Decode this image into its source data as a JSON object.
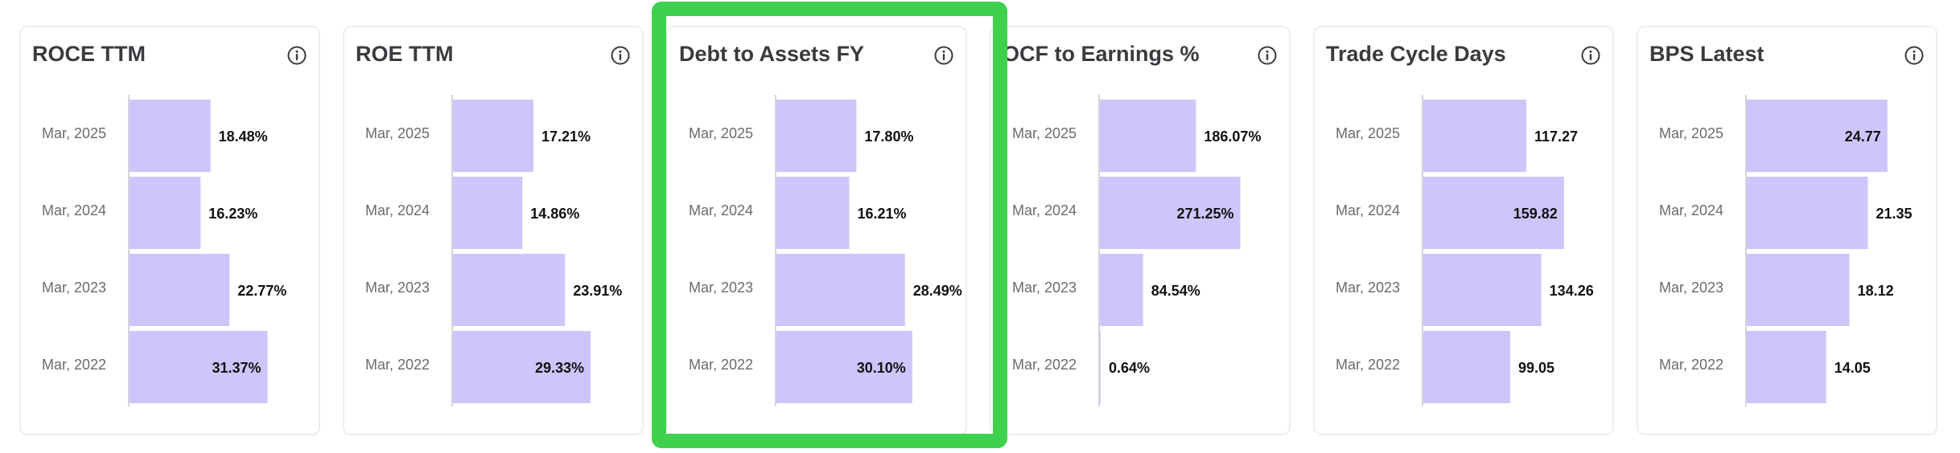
{
  "colors": {
    "bar": "#cdc6fc",
    "axis": "#d4d4da",
    "highlight": "#3fd14d"
  },
  "chart_data": [
    {
      "type": "bar",
      "title": "ROCE TTM",
      "icon": "info-icon",
      "categories": [
        "Mar, 2025",
        "Mar, 2024",
        "Mar, 2023",
        "Mar, 2022"
      ],
      "values": [
        18.48,
        16.23,
        22.77,
        31.37
      ],
      "labels": [
        "18.48%",
        "16.23%",
        "22.77%",
        "31.37%"
      ],
      "xlim": [
        0,
        40
      ]
    },
    {
      "type": "bar",
      "title": "ROE TTM",
      "icon": "info-icon",
      "categories": [
        "Mar, 2025",
        "Mar, 2024",
        "Mar, 2023",
        "Mar, 2022"
      ],
      "values": [
        17.21,
        14.86,
        23.91,
        29.33
      ],
      "labels": [
        "17.21%",
        "14.86%",
        "23.91%",
        "29.33%"
      ],
      "xlim": [
        0,
        37.5
      ]
    },
    {
      "type": "bar",
      "title": "Debt to Assets FY",
      "icon": "info-icon",
      "highlighted": true,
      "categories": [
        "Mar, 2025",
        "Mar, 2024",
        "Mar, 2023",
        "Mar, 2022"
      ],
      "values": [
        17.8,
        16.21,
        28.49,
        30.1
      ],
      "labels": [
        "17.80%",
        "16.21%",
        "28.49%",
        "30.10%"
      ],
      "xlim": [
        0,
        39
      ]
    },
    {
      "type": "bar",
      "title": "OCF to Earnings %",
      "icon": "info-icon",
      "categories": [
        "Mar, 2025",
        "Mar, 2024",
        "Mar, 2023",
        "Mar, 2022"
      ],
      "values": [
        186.07,
        271.25,
        84.54,
        0.64
      ],
      "labels": [
        "186.07%",
        "271.25%",
        "84.54%",
        "0.64%"
      ],
      "xlim": [
        0,
        340
      ]
    },
    {
      "type": "bar",
      "title": "Trade Cycle Days",
      "icon": "info-icon",
      "categories": [
        "Mar, 2025",
        "Mar, 2024",
        "Mar, 2023",
        "Mar, 2022"
      ],
      "values": [
        117.27,
        159.82,
        134.26,
        99.05
      ],
      "labels": [
        "117.27",
        "159.82",
        "134.26",
        "99.05"
      ],
      "xlim": [
        0,
        200
      ]
    },
    {
      "type": "bar",
      "title": "BPS Latest",
      "icon": "info-icon",
      "categories": [
        "Mar, 2025",
        "Mar, 2024",
        "Mar, 2023",
        "Mar, 2022"
      ],
      "values": [
        24.77,
        21.35,
        18.12,
        14.05
      ],
      "labels": [
        "24.77",
        "21.35",
        "18.12",
        "14.05"
      ],
      "xlim": [
        0,
        31
      ]
    }
  ]
}
